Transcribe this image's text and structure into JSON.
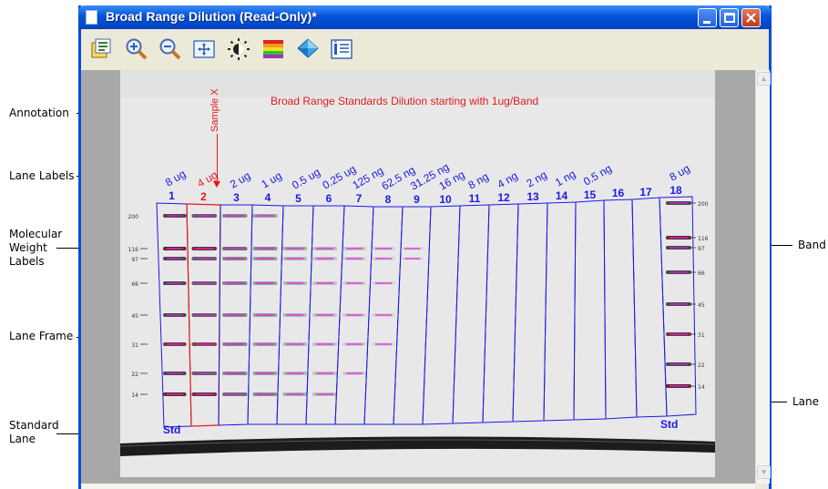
{
  "window": {
    "title": "Broad Range Dilution (Read-Only)*"
  },
  "toolbar": {
    "buttons": [
      "properties-icon",
      "zoom-in-icon",
      "zoom-out-icon",
      "fit-to-window-icon",
      "brightness-icon",
      "color-table-icon",
      "3d-view-icon",
      "info-list-icon"
    ]
  },
  "callouts": {
    "annotation": "Annotation",
    "lane_labels": "Lane Labels",
    "mw_labels_1": "Molecular",
    "mw_labels_2": "Weight",
    "mw_labels_3": "Labels",
    "lane_frame": "Lane Frame",
    "standard_lane_1": "Standard",
    "standard_lane_2": "Lane",
    "band": "Band",
    "lane": "Lane"
  },
  "gel": {
    "heading": "Broad Range Standards Dilution starting with 1ug/Band",
    "sample_note": "Sample X",
    "lane_numbers": [
      "1",
      "2",
      "3",
      "4",
      "5",
      "6",
      "7",
      "8",
      "9",
      "10",
      "11",
      "12",
      "13",
      "14",
      "15",
      "16",
      "17",
      "18"
    ],
    "lane_amounts": [
      "8 ug",
      "4 ug",
      "2 ug",
      "1 ug",
      "0.5 ug",
      "0.25 ug",
      "125 ng",
      "62.5 ng",
      "31.25 ng",
      "16 ng",
      "8 ng",
      "4 ng",
      "2 ng",
      "1 ng",
      "0.5 ng",
      "",
      "",
      "8 ug"
    ],
    "selected_lane": "2",
    "std_left": "Std",
    "std_right": "Std",
    "mw_left": [
      "200",
      "116",
      "97",
      "66",
      "45",
      "31",
      "22",
      "14"
    ],
    "mw_right": [
      "200",
      "116",
      "97",
      "66",
      "45",
      "31",
      "22",
      "14"
    ],
    "colors": {
      "lane_frame": "#1a1ae6",
      "selected_lane": "#e61a1a",
      "band_mark": "#e020e0",
      "label": "#1a1ae6"
    }
  }
}
